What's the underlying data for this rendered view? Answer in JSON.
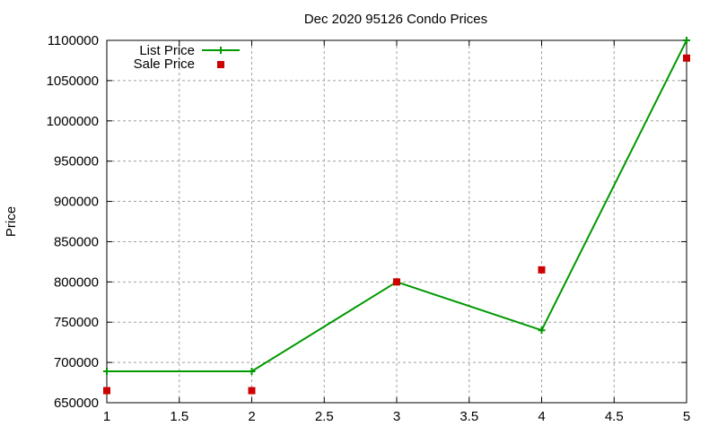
{
  "chart_data": {
    "type": "line",
    "title": "Dec 2020 95126 Condo Prices",
    "xlabel": "",
    "ylabel": "Price",
    "xlim": [
      1,
      5
    ],
    "ylim": [
      650000,
      1100000
    ],
    "xticks": [
      "1",
      "1.5",
      "2",
      "2.5",
      "3",
      "3.5",
      "4",
      "4.5",
      "5"
    ],
    "yticks": [
      "650000",
      "700000",
      "750000",
      "800000",
      "850000",
      "900000",
      "950000",
      "1000000",
      "1050000",
      "1100000"
    ],
    "grid": true,
    "legend_position": "top-left",
    "series": [
      {
        "name": "List Price",
        "style": "linespoints",
        "color": "#009900",
        "x": [
          1,
          2,
          3,
          4,
          5
        ],
        "values": [
          689000,
          689000,
          800000,
          740000,
          1100000
        ]
      },
      {
        "name": "Sale Price",
        "style": "points",
        "color": "#cc0000",
        "x": [
          1,
          2,
          3,
          4,
          5
        ],
        "values": [
          665000,
          665000,
          800000,
          815000,
          1078000
        ]
      }
    ]
  }
}
